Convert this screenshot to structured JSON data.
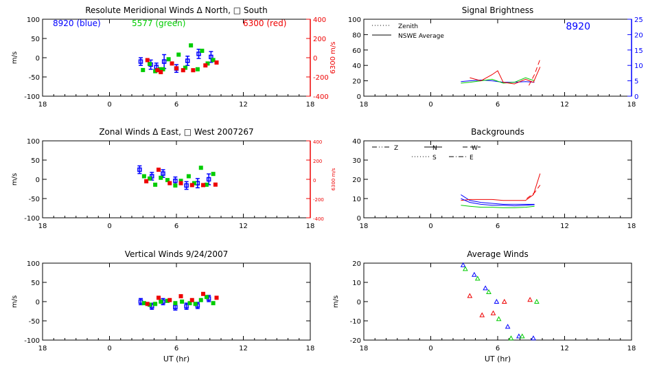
{
  "colors": {
    "blue": "#0000ff",
    "green": "#00cc00",
    "red": "#ee0000",
    "axis": "#000000"
  },
  "chart_data": [
    {
      "id": "meridional",
      "type": "scatter",
      "title": "Resolute Meridional Winds Δ North, □ South",
      "ylabel": "m/s",
      "xlabel": "",
      "x_ticks": [
        "18",
        "0",
        "6",
        "12",
        "18"
      ],
      "x_range_ut": [
        -6,
        18
      ],
      "ylim": [
        -100,
        100
      ],
      "y_ticks": [
        "100",
        "50",
        "0",
        "-50",
        "-100"
      ],
      "right_axis": {
        "label": "6300 m/s",
        "ylim": [
          -400,
          400
        ],
        "ticks": [
          "400",
          "200",
          "0",
          "-200",
          "-400"
        ]
      },
      "annotations": [
        {
          "text": "8920 (blue)",
          "color": "blue",
          "pos": "left"
        },
        {
          "text": "5577 (green)",
          "color": "green",
          "pos": "center"
        },
        {
          "text": "6300 (red)",
          "color": "red",
          "pos": "right"
        }
      ],
      "series": [
        {
          "name": "8920",
          "color": "blue",
          "points": [
            [
              2.8,
              -10
            ],
            [
              3.7,
              -18
            ],
            [
              4.2,
              -24
            ],
            [
              4.9,
              -10
            ],
            [
              6.0,
              -28
            ],
            [
              7.0,
              -8
            ],
            [
              8.0,
              10
            ],
            [
              9.1,
              2
            ]
          ],
          "errors": [
            10,
            12,
            10,
            18,
            10,
            12,
            12,
            14
          ]
        },
        {
          "name": "5577",
          "color": "green",
          "points": [
            [
              3.0,
              -32
            ],
            [
              3.6,
              -16
            ],
            [
              4.1,
              -35
            ],
            [
              4.5,
              -30
            ],
            [
              4.8,
              -30
            ],
            [
              5.3,
              -4
            ],
            [
              6.2,
              8
            ],
            [
              6.8,
              -26
            ],
            [
              7.3,
              32
            ],
            [
              7.9,
              -30
            ],
            [
              8.3,
              18
            ],
            [
              8.8,
              -15
            ],
            [
              9.3,
              -6
            ]
          ]
        },
        {
          "name": "6300",
          "color": "red",
          "points": [
            [
              3.4,
              -25
            ],
            [
              4.3,
              -130
            ],
            [
              5.6,
              -60
            ],
            [
              6.6,
              -130
            ],
            [
              7.5,
              -130
            ],
            [
              8.6,
              -80
            ],
            [
              9.6,
              -50
            ],
            [
              4.6,
              -150
            ],
            [
              6.0,
              -110
            ]
          ]
        }
      ]
    },
    {
      "id": "zonal",
      "type": "scatter",
      "title": "Zonal Winds Δ East, □ West 2007267",
      "ylabel": "m/s",
      "xlabel": "",
      "x_ticks": [
        "18",
        "0",
        "6",
        "12",
        "18"
      ],
      "x_range_ut": [
        -6,
        18
      ],
      "ylim": [
        -100,
        100
      ],
      "y_ticks": [
        "100",
        "50",
        "0",
        "-50",
        "-100"
      ],
      "right_axis": {
        "label": "6300 m/s",
        "ylim": [
          -400,
          400
        ],
        "ticks": [
          "400",
          "200",
          "0",
          "-200",
          "-400"
        ]
      },
      "series": [
        {
          "name": "8920",
          "color": "blue",
          "points": [
            [
              2.7,
              25
            ],
            [
              3.8,
              8
            ],
            [
              4.8,
              15
            ],
            [
              5.9,
              -4
            ],
            [
              6.9,
              -16
            ],
            [
              7.9,
              -10
            ],
            [
              8.9,
              0
            ]
          ],
          "errors": [
            10,
            10,
            10,
            10,
            10,
            12,
            14
          ]
        },
        {
          "name": "5577",
          "color": "green",
          "points": [
            [
              3.1,
              8
            ],
            [
              3.6,
              2
            ],
            [
              4.1,
              -14
            ],
            [
              4.6,
              4
            ],
            [
              5.2,
              -2
            ],
            [
              5.9,
              -16
            ],
            [
              6.4,
              -4
            ],
            [
              7.1,
              8
            ],
            [
              7.6,
              -10
            ],
            [
              8.2,
              30
            ],
            [
              8.7,
              -14
            ],
            [
              9.3,
              14
            ]
          ]
        },
        {
          "name": "6300",
          "color": "red",
          "points": [
            [
              3.3,
              -20
            ],
            [
              4.4,
              100
            ],
            [
              5.4,
              -40
            ],
            [
              6.4,
              -40
            ],
            [
              7.4,
              -60
            ],
            [
              8.4,
              -60
            ],
            [
              9.5,
              -55
            ]
          ]
        }
      ]
    },
    {
      "id": "vertical",
      "type": "scatter",
      "title": "Vertical Winds 9/24/2007",
      "ylabel": "m/s",
      "xlabel": "UT (hr)",
      "x_ticks": [
        "18",
        "0",
        "6",
        "12",
        "18"
      ],
      "x_range_ut": [
        -6,
        18
      ],
      "ylim": [
        -100,
        100
      ],
      "y_ticks": [
        "100",
        "50",
        "0",
        "-50",
        "-100"
      ],
      "series": [
        {
          "name": "8920",
          "color": "blue",
          "points": [
            [
              2.8,
              0
            ],
            [
              3.8,
              -12
            ],
            [
              4.8,
              0
            ],
            [
              5.9,
              -14
            ],
            [
              6.9,
              -12
            ],
            [
              7.9,
              -10
            ],
            [
              8.9,
              8
            ]
          ],
          "errors": [
            8,
            8,
            8,
            8,
            8,
            8,
            8
          ]
        },
        {
          "name": "5577",
          "color": "green",
          "points": [
            [
              3.1,
              -4
            ],
            [
              3.6,
              -8
            ],
            [
              4.1,
              -6
            ],
            [
              4.6,
              0
            ],
            [
              5.2,
              2
            ],
            [
              5.9,
              -4
            ],
            [
              6.5,
              0
            ],
            [
              7.2,
              -4
            ],
            [
              7.7,
              -6
            ],
            [
              8.2,
              4
            ],
            [
              8.7,
              12
            ],
            [
              9.3,
              -4
            ]
          ]
        },
        {
          "name": "6300",
          "color": "red",
          "points": [
            [
              3.4,
              -6
            ],
            [
              4.4,
              10
            ],
            [
              5.4,
              4
            ],
            [
              6.4,
              14
            ],
            [
              7.4,
              4
            ],
            [
              8.4,
              20
            ],
            [
              9.6,
              10
            ]
          ]
        }
      ]
    },
    {
      "id": "brightness",
      "type": "line",
      "title": "Signal Brightness",
      "ylabel": "",
      "xlabel": "",
      "x_ticks": [
        "18",
        "0",
        "6",
        "12",
        "18"
      ],
      "x_range_ut": [
        -6,
        18
      ],
      "ylim": [
        0,
        100
      ],
      "y_ticks": [
        "100",
        "80",
        "60",
        "40",
        "20",
        "0"
      ],
      "right_axis": {
        "label": "",
        "ylim": [
          0,
          25
        ],
        "ticks": [
          "25",
          "20",
          "15",
          "10",
          "5",
          "0"
        ]
      },
      "annotations": [
        {
          "text": "8920",
          "color": "blue",
          "pos": "top-right"
        }
      ],
      "legend": {
        "position": "top-left",
        "entries": [
          {
            "label": "Zenith",
            "style": "dotted"
          },
          {
            "label": "NSWE Average",
            "style": "solid"
          }
        ]
      },
      "series": [
        {
          "name": "blue",
          "color": "blue",
          "x": [
            2.7,
            3.5,
            4.5,
            5.5,
            6.5,
            7.5,
            8.5,
            9.3
          ],
          "y": [
            19,
            20,
            21,
            20,
            18,
            18,
            19,
            18
          ]
        },
        {
          "name": "green",
          "color": "green",
          "x": [
            2.7,
            3.5,
            4.5,
            5.5,
            6.5,
            7.5,
            8.5,
            9.3
          ],
          "y": [
            17,
            18,
            20,
            22,
            17,
            18,
            24,
            20
          ]
        },
        {
          "name": "red",
          "color": "red",
          "x": [
            3.5,
            4.5,
            5.5,
            6.0,
            6.5,
            7.5,
            8.5,
            9.2,
            9.8
          ],
          "y": [
            24,
            20,
            28,
            33,
            18,
            16,
            22,
            18,
            38
          ]
        },
        {
          "name": "red-zenith",
          "color": "red",
          "style": "dashed",
          "x": [
            8.8,
            9.3,
            9.8
          ],
          "y": [
            14,
            28,
            48
          ]
        }
      ]
    },
    {
      "id": "backgrounds",
      "type": "line",
      "title": "Backgrounds",
      "ylabel": "",
      "xlabel": "",
      "x_ticks": [
        "18",
        "0",
        "6",
        "12",
        "18"
      ],
      "x_range_ut": [
        -6,
        18
      ],
      "ylim": [
        0,
        40
      ],
      "y_ticks": [
        "40",
        "30",
        "20",
        "10",
        "0"
      ],
      "legend": {
        "position": "top-left",
        "entries": [
          {
            "label": "Z",
            "style": "dash-dot-dot"
          },
          {
            "label": "N",
            "style": "solid"
          },
          {
            "label": "W",
            "style": "dashed"
          },
          {
            "label": "S",
            "style": "dotted"
          },
          {
            "label": "E",
            "style": "dash-dot"
          }
        ]
      },
      "series": [
        {
          "name": "blue",
          "color": "blue",
          "x": [
            2.7,
            3.5,
            4.5,
            5.5,
            6.5,
            7.5,
            8.5,
            9.3
          ],
          "y": [
            12,
            9,
            8,
            7.5,
            7,
            7,
            7,
            7
          ]
        },
        {
          "name": "green",
          "color": "green",
          "x": [
            2.7,
            3.5,
            4.5,
            5.5,
            6.5,
            7.5,
            8.5,
            9.3
          ],
          "y": [
            6.5,
            6,
            5.5,
            5.5,
            5.2,
            5.2,
            5.5,
            6
          ]
        },
        {
          "name": "red",
          "color": "red",
          "x": [
            2.7,
            3.5,
            4.5,
            5.5,
            6.5,
            7.5,
            8.5,
            9.2,
            9.8
          ],
          "y": [
            9,
            9.5,
            9.5,
            9.5,
            9,
            9,
            9,
            12,
            23
          ]
        },
        {
          "name": "blue-2",
          "color": "blue",
          "x": [
            2.7,
            3.5,
            4.5,
            5.5,
            6.5,
            7.5,
            8.5,
            9.3
          ],
          "y": [
            10,
            8,
            7,
            6.5,
            6.5,
            6.2,
            6.5,
            6.8
          ]
        },
        {
          "name": "red-2",
          "color": "red",
          "style": "dashed",
          "x": [
            8.6,
            9.3,
            9.8
          ],
          "y": [
            10,
            13,
            17
          ]
        }
      ]
    },
    {
      "id": "average",
      "type": "scatter",
      "title": "Average Winds",
      "ylabel": "m/s",
      "xlabel": "UT (hr)",
      "x_ticks": [
        "18",
        "0",
        "6",
        "12",
        "18"
      ],
      "x_range_ut": [
        -6,
        18
      ],
      "ylim": [
        -20,
        20
      ],
      "y_ticks": [
        "20",
        "10",
        "0",
        "-10",
        "-20"
      ],
      "series": [
        {
          "name": "blue",
          "color": "blue",
          "points": [
            [
              2.9,
              19
            ],
            [
              3.9,
              14
            ],
            [
              4.9,
              7
            ],
            [
              5.9,
              0
            ],
            [
              6.9,
              -13
            ],
            [
              7.9,
              -18
            ],
            [
              9.2,
              -19
            ]
          ]
        },
        {
          "name": "green",
          "color": "green",
          "points": [
            [
              3.1,
              17
            ],
            [
              4.2,
              12
            ],
            [
              5.2,
              5
            ],
            [
              6.1,
              -9
            ],
            [
              7.2,
              -19
            ],
            [
              8.2,
              -18
            ],
            [
              9.5,
              0
            ]
          ]
        },
        {
          "name": "red",
          "color": "red",
          "points": [
            [
              3.5,
              3
            ],
            [
              4.6,
              -7
            ],
            [
              5.6,
              -6
            ],
            [
              6.6,
              0
            ],
            [
              8.9,
              1
            ]
          ]
        }
      ]
    }
  ]
}
